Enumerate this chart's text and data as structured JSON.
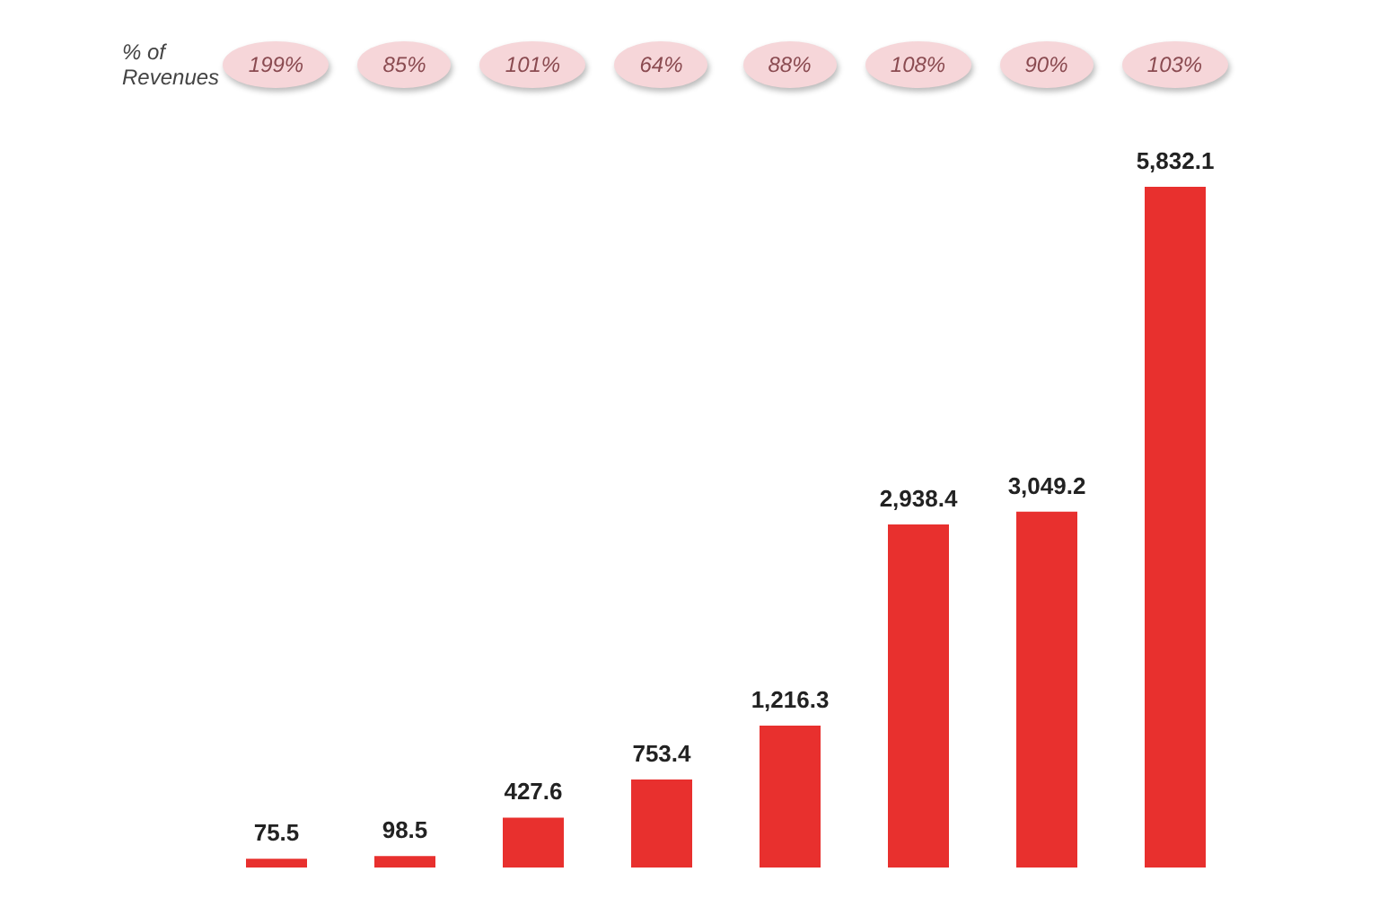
{
  "chart_data": {
    "type": "bar",
    "categories": [
      null,
      null,
      null,
      null,
      null,
      null,
      null,
      null
    ],
    "series": [
      {
        "color": "#e8302e",
        "values": [
          75.5,
          98.5,
          427.6,
          753.4,
          1216.3,
          2938.4,
          3049.2,
          5832.1
        ],
        "value_labels": [
          "75.5",
          "98.5",
          "427.6",
          "753.4",
          "1,216.3",
          "2,938.4",
          "3,049.2",
          "5,832.1"
        ]
      }
    ],
    "annotations": [
      "% of Revenues",
      "199%",
      "85%",
      "101%",
      "64%",
      "88%",
      "108%",
      "90%",
      "103%"
    ],
    "grid": false,
    "legend": false
  }
}
